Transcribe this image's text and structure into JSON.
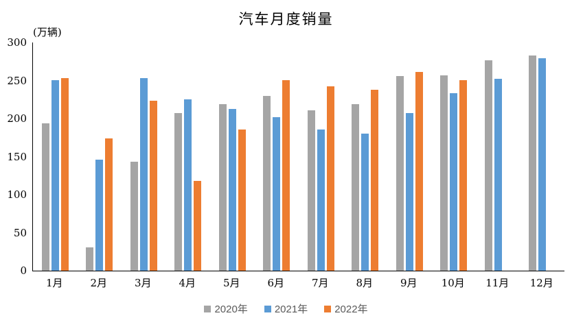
{
  "chart_data": {
    "type": "bar",
    "title": "汽车月度销量",
    "unit_label": "(万辆)",
    "categories": [
      "1月",
      "2月",
      "3月",
      "4月",
      "5月",
      "6月",
      "7月",
      "8月",
      "9月",
      "10月",
      "11月",
      "12月"
    ],
    "series": [
      {
        "name": "2020年",
        "color": "#A5A5A5",
        "values": [
          194,
          31,
          143,
          207,
          219,
          230,
          211,
          219,
          256,
          257,
          277,
          283
        ]
      },
      {
        "name": "2021年",
        "color": "#5B9BD5",
        "values": [
          250,
          146,
          253,
          225,
          213,
          202,
          186,
          180,
          207,
          233,
          252,
          279
        ]
      },
      {
        "name": "2022年",
        "color": "#ED7D31",
        "values": [
          253,
          174,
          223,
          118,
          186,
          250,
          242,
          238,
          261,
          250,
          null,
          null
        ]
      }
    ],
    "ylim": [
      0,
      300
    ],
    "yticks": [
      0,
      50,
      100,
      150,
      200,
      250,
      300
    ],
    "xlabel": "",
    "ylabel": "",
    "grid": false,
    "legend_position": "bottom"
  }
}
